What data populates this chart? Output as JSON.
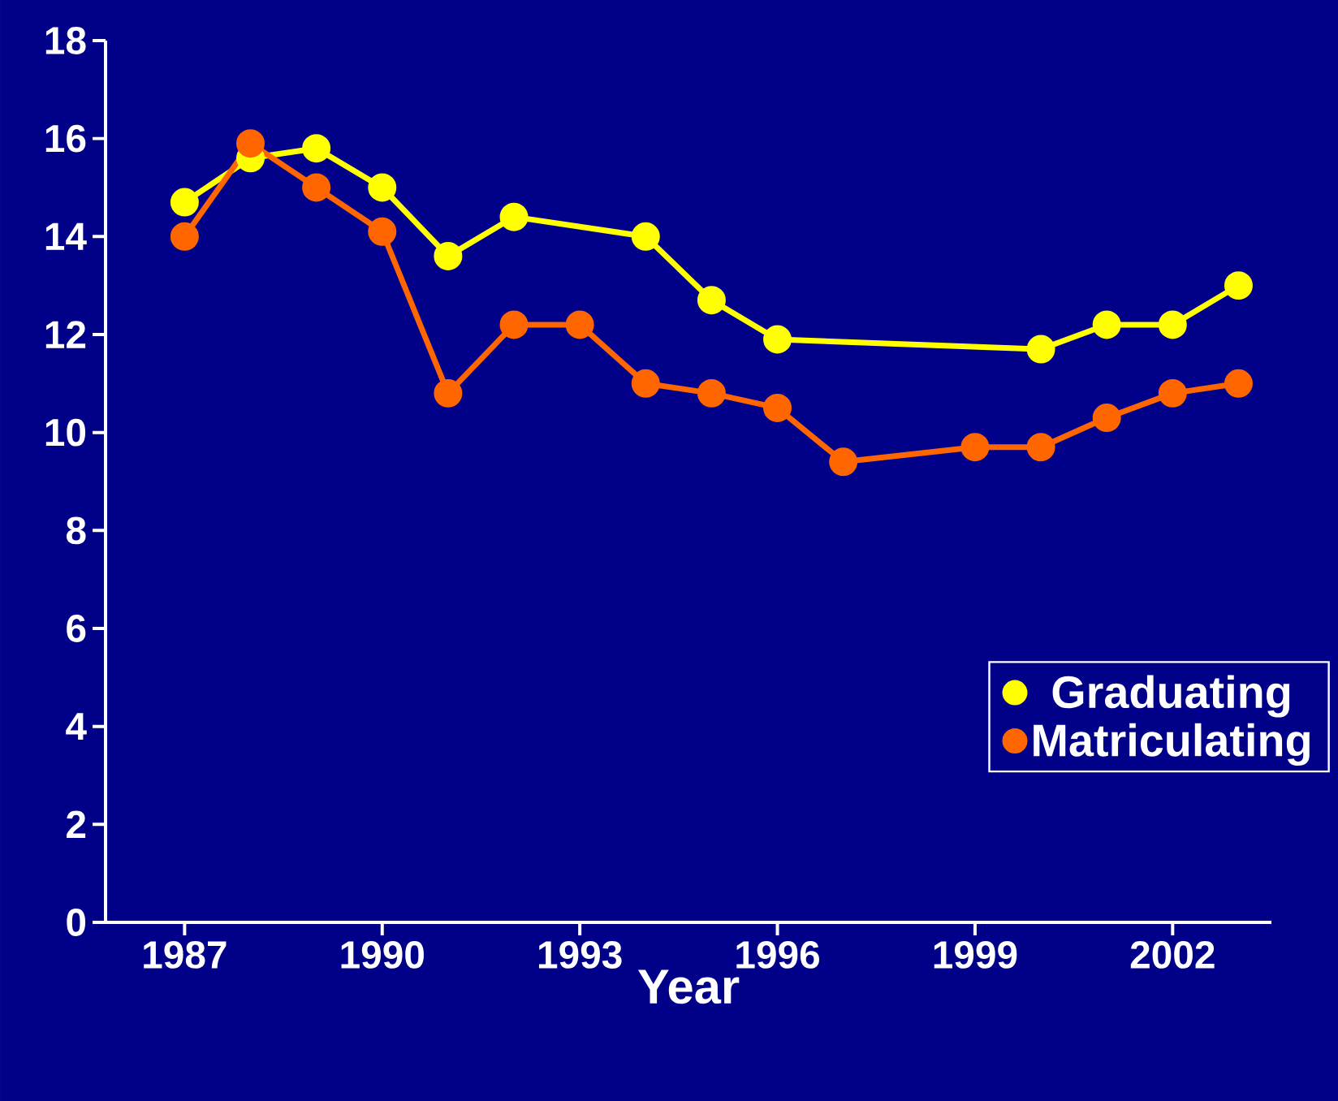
{
  "chart_data": {
    "type": "line",
    "xlabel": "Year",
    "xlim": [
      1985.8,
      2003.5
    ],
    "ylim": [
      0,
      18
    ],
    "xticks": [
      1987,
      1990,
      1993,
      1996,
      1999,
      2002
    ],
    "yticks": [
      0,
      2,
      4,
      6,
      8,
      10,
      12,
      14,
      16,
      18
    ],
    "grid": false,
    "legend": "bottom right",
    "marker": "circle",
    "line_style": "solid",
    "series": [
      {
        "name": "Graduating",
        "color": "#ffff00",
        "x": [
          1987,
          1988,
          1989,
          1990,
          1991,
          1992,
          1994,
          1995,
          1996,
          2000,
          2001,
          2002,
          2003
        ],
        "values": [
          14.7,
          15.6,
          15.8,
          15.0,
          13.6,
          14.4,
          14.0,
          12.7,
          11.9,
          11.7,
          12.2,
          12.2,
          13.0
        ]
      },
      {
        "name": "Matriculating",
        "color": "#ff6600",
        "x": [
          1987,
          1988,
          1989,
          1990,
          1991,
          1992,
          1993,
          1994,
          1995,
          1996,
          1997,
          1999,
          2000,
          2001,
          2002,
          2003
        ],
        "values": [
          14.0,
          15.9,
          15.0,
          14.1,
          10.8,
          12.2,
          12.2,
          11.0,
          10.8,
          10.5,
          9.4,
          9.7,
          9.7,
          10.3,
          10.8,
          11.0
        ]
      }
    ]
  }
}
